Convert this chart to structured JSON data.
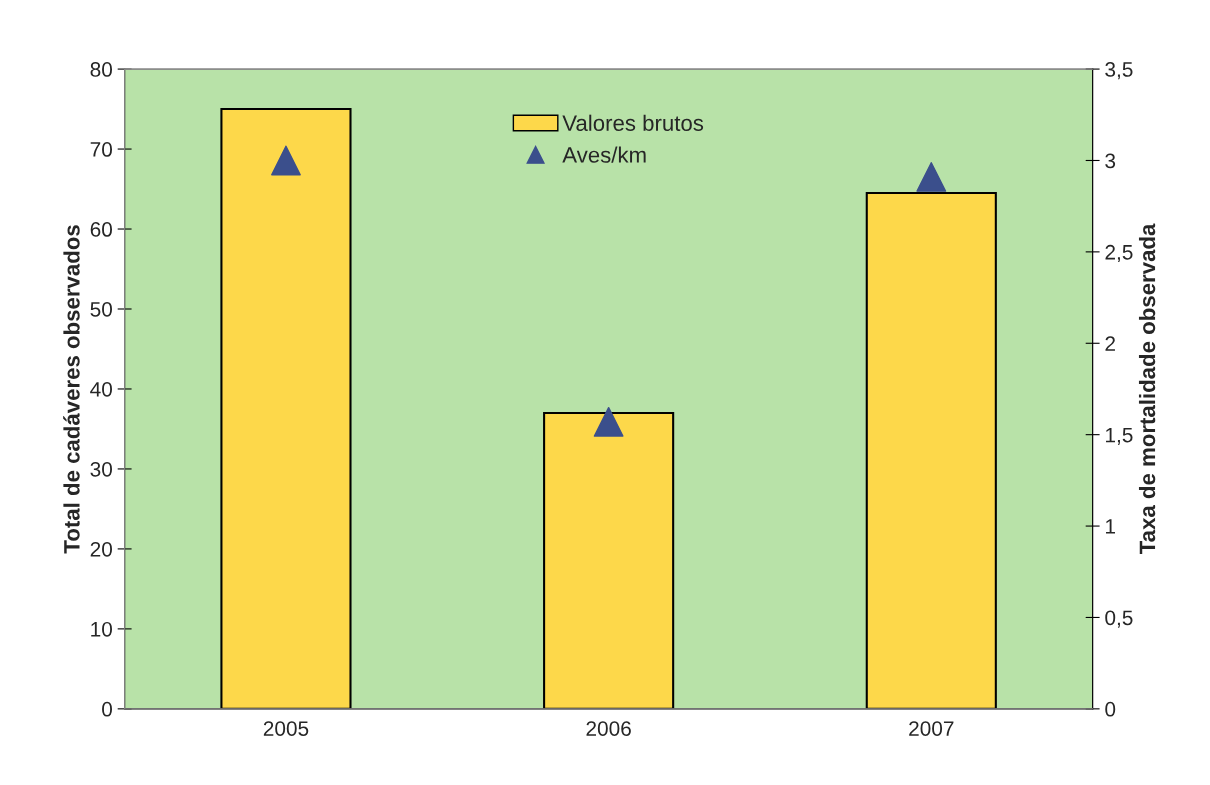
{
  "chart_data": {
    "type": "bar",
    "ylabel": "Total de cadáveres observados",
    "y2label": "Taxa de mortalidade observada",
    "categories": [
      "2005",
      "2006",
      "2007"
    ],
    "series": [
      {
        "name": "Valores brutos",
        "color": "#fdd84a",
        "values": [
          75,
          37,
          64.5
        ]
      },
      {
        "name": "Aves/km",
        "type": "scatter",
        "axis": "y2",
        "marker": "triangle",
        "color": "#3b4f8c",
        "values": [
          3.0,
          1.57,
          2.91
        ]
      }
    ],
    "ylim": [
      0,
      80
    ],
    "yticks": [
      0,
      10,
      20,
      30,
      40,
      50,
      60,
      70,
      80
    ],
    "y2lim": [
      0,
      3.5
    ],
    "y2ticks": [
      0,
      {
        "value": 0.5,
        "label": "0,5"
      },
      1,
      {
        "value": 1.5,
        "label": "1,5"
      },
      2,
      {
        "value": 2.5,
        "label": "2,5"
      },
      3,
      {
        "value": 3.5,
        "label": "3,5"
      }
    ],
    "grid": false,
    "legend": "top"
  }
}
